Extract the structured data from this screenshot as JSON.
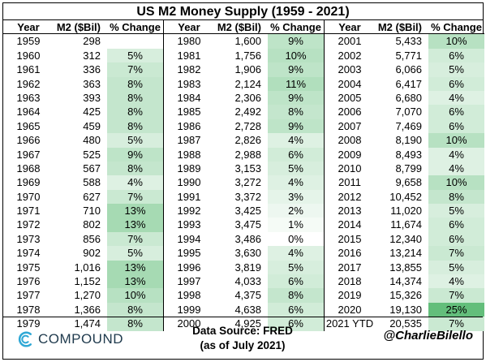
{
  "title": "US M2 Money Supply (1959 - 2021)",
  "headers": {
    "year": "Year",
    "m2": "M2 ($Bil)",
    "pct": "% Change"
  },
  "colors": {
    "heat_low": "#ffffff",
    "heat_high": "#63be7b"
  },
  "rows": [
    {
      "year": "1959",
      "m2": "298",
      "pct": "",
      "pct_value": null
    },
    {
      "year": "1960",
      "m2": "312",
      "pct": "5%",
      "pct_value": 5
    },
    {
      "year": "1961",
      "m2": "336",
      "pct": "7%",
      "pct_value": 7
    },
    {
      "year": "1962",
      "m2": "363",
      "pct": "8%",
      "pct_value": 8
    },
    {
      "year": "1963",
      "m2": "393",
      "pct": "8%",
      "pct_value": 8
    },
    {
      "year": "1964",
      "m2": "425",
      "pct": "8%",
      "pct_value": 8
    },
    {
      "year": "1965",
      "m2": "459",
      "pct": "8%",
      "pct_value": 8
    },
    {
      "year": "1966",
      "m2": "480",
      "pct": "5%",
      "pct_value": 5
    },
    {
      "year": "1967",
      "m2": "525",
      "pct": "9%",
      "pct_value": 9
    },
    {
      "year": "1968",
      "m2": "567",
      "pct": "8%",
      "pct_value": 8
    },
    {
      "year": "1969",
      "m2": "588",
      "pct": "4%",
      "pct_value": 4
    },
    {
      "year": "1970",
      "m2": "627",
      "pct": "7%",
      "pct_value": 7
    },
    {
      "year": "1971",
      "m2": "710",
      "pct": "13%",
      "pct_value": 13
    },
    {
      "year": "1972",
      "m2": "802",
      "pct": "13%",
      "pct_value": 13
    },
    {
      "year": "1973",
      "m2": "856",
      "pct": "7%",
      "pct_value": 7
    },
    {
      "year": "1974",
      "m2": "902",
      "pct": "5%",
      "pct_value": 5
    },
    {
      "year": "1975",
      "m2": "1,016",
      "pct": "13%",
      "pct_value": 13
    },
    {
      "year": "1976",
      "m2": "1,152",
      "pct": "13%",
      "pct_value": 13
    },
    {
      "year": "1977",
      "m2": "1,270",
      "pct": "10%",
      "pct_value": 10
    },
    {
      "year": "1978",
      "m2": "1,366",
      "pct": "8%",
      "pct_value": 8
    },
    {
      "year": "1979",
      "m2": "1,474",
      "pct": "8%",
      "pct_value": 8
    },
    {
      "year": "1980",
      "m2": "1,600",
      "pct": "9%",
      "pct_value": 9
    },
    {
      "year": "1981",
      "m2": "1,756",
      "pct": "10%",
      "pct_value": 10
    },
    {
      "year": "1982",
      "m2": "1,906",
      "pct": "9%",
      "pct_value": 9
    },
    {
      "year": "1983",
      "m2": "2,124",
      "pct": "11%",
      "pct_value": 11
    },
    {
      "year": "1984",
      "m2": "2,306",
      "pct": "9%",
      "pct_value": 9
    },
    {
      "year": "1985",
      "m2": "2,492",
      "pct": "8%",
      "pct_value": 8
    },
    {
      "year": "1986",
      "m2": "2,728",
      "pct": "9%",
      "pct_value": 9
    },
    {
      "year": "1987",
      "m2": "2,826",
      "pct": "4%",
      "pct_value": 4
    },
    {
      "year": "1988",
      "m2": "2,988",
      "pct": "6%",
      "pct_value": 6
    },
    {
      "year": "1989",
      "m2": "3,153",
      "pct": "5%",
      "pct_value": 5
    },
    {
      "year": "1990",
      "m2": "3,272",
      "pct": "4%",
      "pct_value": 4
    },
    {
      "year": "1991",
      "m2": "3,372",
      "pct": "3%",
      "pct_value": 3
    },
    {
      "year": "1992",
      "m2": "3,425",
      "pct": "2%",
      "pct_value": 2
    },
    {
      "year": "1993",
      "m2": "3,475",
      "pct": "1%",
      "pct_value": 1
    },
    {
      "year": "1994",
      "m2": "3,486",
      "pct": "0%",
      "pct_value": 0
    },
    {
      "year": "1995",
      "m2": "3,630",
      "pct": "4%",
      "pct_value": 4
    },
    {
      "year": "1996",
      "m2": "3,819",
      "pct": "5%",
      "pct_value": 5
    },
    {
      "year": "1997",
      "m2": "4,033",
      "pct": "6%",
      "pct_value": 6
    },
    {
      "year": "1998",
      "m2": "4,375",
      "pct": "8%",
      "pct_value": 8
    },
    {
      "year": "1999",
      "m2": "4,638",
      "pct": "6%",
      "pct_value": 6
    },
    {
      "year": "2000",
      "m2": "4,925",
      "pct": "6%",
      "pct_value": 6
    },
    {
      "year": "2001",
      "m2": "5,433",
      "pct": "10%",
      "pct_value": 10
    },
    {
      "year": "2002",
      "m2": "5,771",
      "pct": "6%",
      "pct_value": 6
    },
    {
      "year": "2003",
      "m2": "6,066",
      "pct": "5%",
      "pct_value": 5
    },
    {
      "year": "2004",
      "m2": "6,417",
      "pct": "6%",
      "pct_value": 6
    },
    {
      "year": "2005",
      "m2": "6,680",
      "pct": "4%",
      "pct_value": 4
    },
    {
      "year": "2006",
      "m2": "7,070",
      "pct": "6%",
      "pct_value": 6
    },
    {
      "year": "2007",
      "m2": "7,469",
      "pct": "6%",
      "pct_value": 6
    },
    {
      "year": "2008",
      "m2": "8,190",
      "pct": "10%",
      "pct_value": 10
    },
    {
      "year": "2009",
      "m2": "8,493",
      "pct": "4%",
      "pct_value": 4
    },
    {
      "year": "2010",
      "m2": "8,799",
      "pct": "4%",
      "pct_value": 4
    },
    {
      "year": "2011",
      "m2": "9,658",
      "pct": "10%",
      "pct_value": 10
    },
    {
      "year": "2012",
      "m2": "10,452",
      "pct": "8%",
      "pct_value": 8
    },
    {
      "year": "2013",
      "m2": "11,020",
      "pct": "5%",
      "pct_value": 5
    },
    {
      "year": "2014",
      "m2": "11,674",
      "pct": "6%",
      "pct_value": 6
    },
    {
      "year": "2015",
      "m2": "12,340",
      "pct": "6%",
      "pct_value": 6
    },
    {
      "year": "2016",
      "m2": "13,214",
      "pct": "7%",
      "pct_value": 7
    },
    {
      "year": "2017",
      "m2": "13,855",
      "pct": "5%",
      "pct_value": 5
    },
    {
      "year": "2018",
      "m2": "14,374",
      "pct": "4%",
      "pct_value": 4
    },
    {
      "year": "2019",
      "m2": "15,326",
      "pct": "7%",
      "pct_value": 7
    },
    {
      "year": "2020",
      "m2": "19,130",
      "pct": "25%",
      "pct_value": 25
    },
    {
      "year": "2021 YTD",
      "m2": "20,535",
      "pct": "7%",
      "pct_value": 7
    }
  ],
  "footer": {
    "logo_text": "COMPOUND",
    "source_line1": "Data Source: FRED",
    "source_line2": "(as of July 2021)",
    "handle": "@CharlieBilello"
  }
}
